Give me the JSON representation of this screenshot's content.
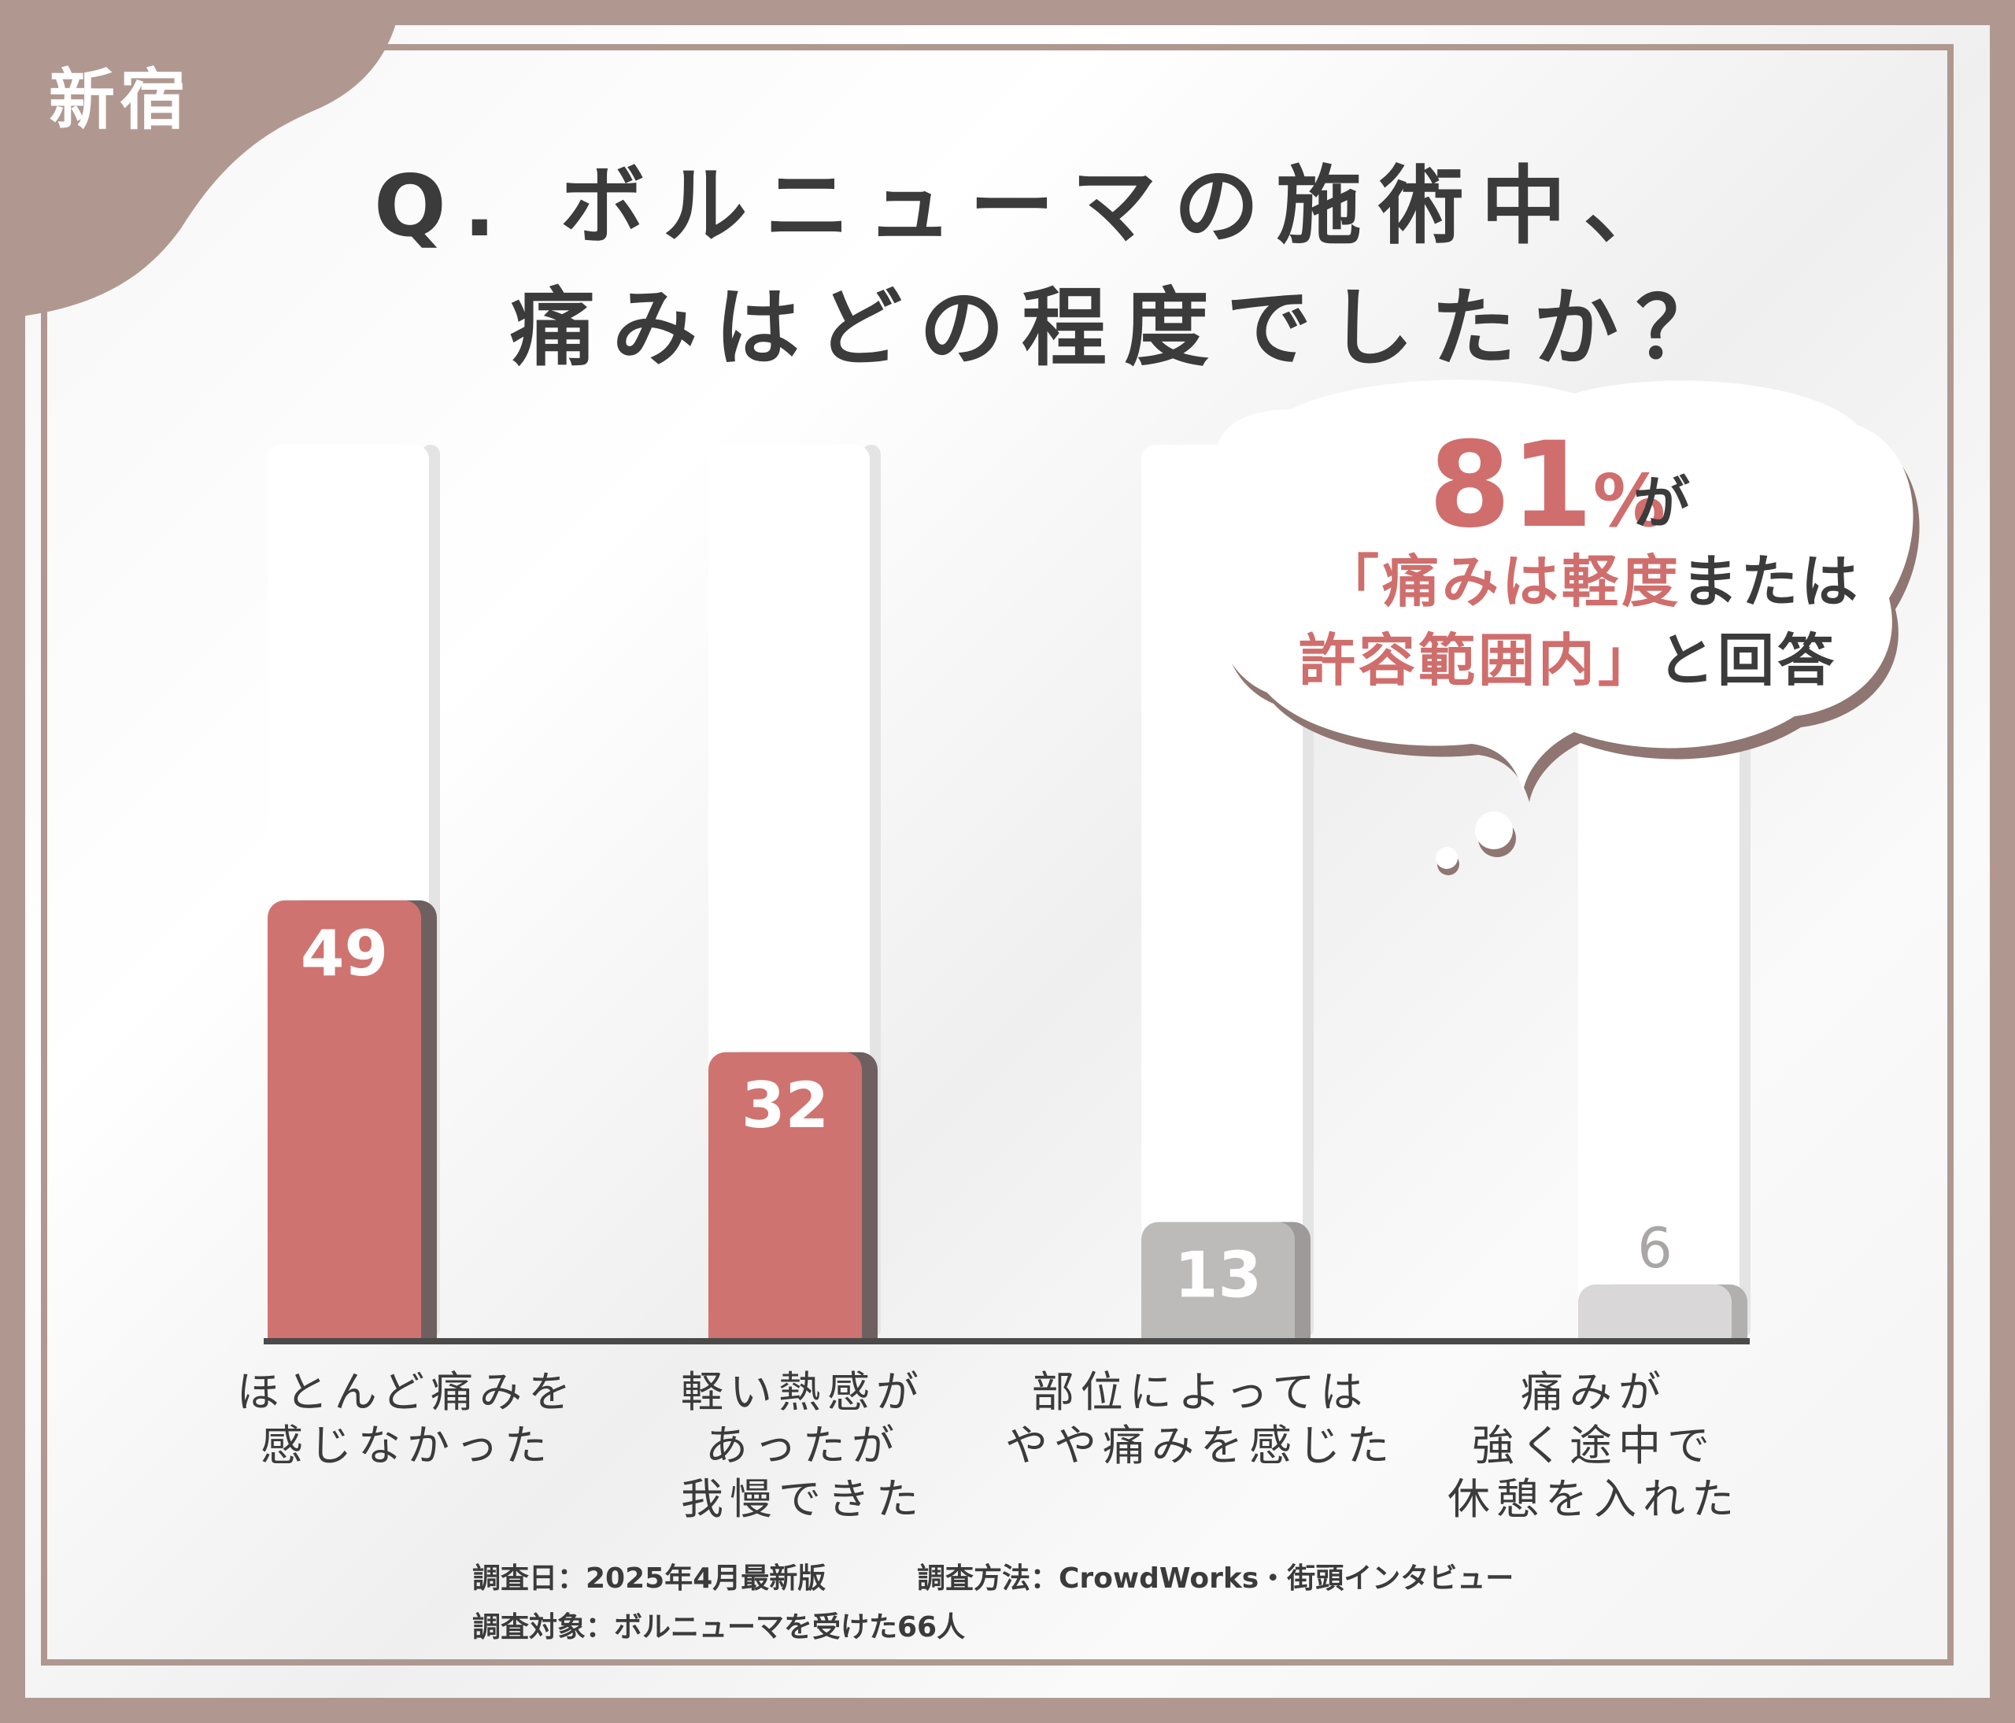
{
  "region_label": "新宿",
  "title": {
    "line1": "Q. ボルニューマの施術中、",
    "line2": "痛みはどの程度でしたか？"
  },
  "callout": {
    "percent": "81",
    "percent_unit": "%",
    "suffix": "が",
    "line2_pink": "「痛みは軽度",
    "line2_dark": "または",
    "line3_pink": "許容範囲内」",
    "line3_dark": "と回答"
  },
  "chart_data": {
    "type": "bar",
    "categories": [
      [
        "ほとんど痛みを",
        "感じなかった"
      ],
      [
        "軽い熱感が",
        "あったが",
        "我慢できた"
      ],
      [
        "部位によっては",
        "やや痛みを感じた"
      ],
      [
        "痛みが",
        "強く途中で",
        "休憩を入れた"
      ]
    ],
    "values": [
      49,
      32,
      13,
      6
    ],
    "data_labels": [
      "49",
      "32",
      "13",
      "6"
    ],
    "ylim": [
      0,
      100
    ],
    "colors": [
      "#cf7370",
      "#cf7370",
      "#bdbaba",
      "#d9d7d7"
    ],
    "shadow_colors": [
      "#6e6060",
      "#6e6060",
      "#9e9a9a",
      "#b2afaf"
    ],
    "track_color": "#ffffff",
    "axis_color": "#4a4a4a",
    "grid": false
  },
  "footer": {
    "line1_date": "調査日：2025年4月最新版",
    "line1_method": "調査方法：CrowdWorks・街頭インタビュー",
    "line2": "調査対象：ボルニューマを受けた66人"
  },
  "colors": {
    "frame": "#b09890",
    "accent_pink": "#cf6e6c",
    "text_dark": "#3b3b3b"
  }
}
